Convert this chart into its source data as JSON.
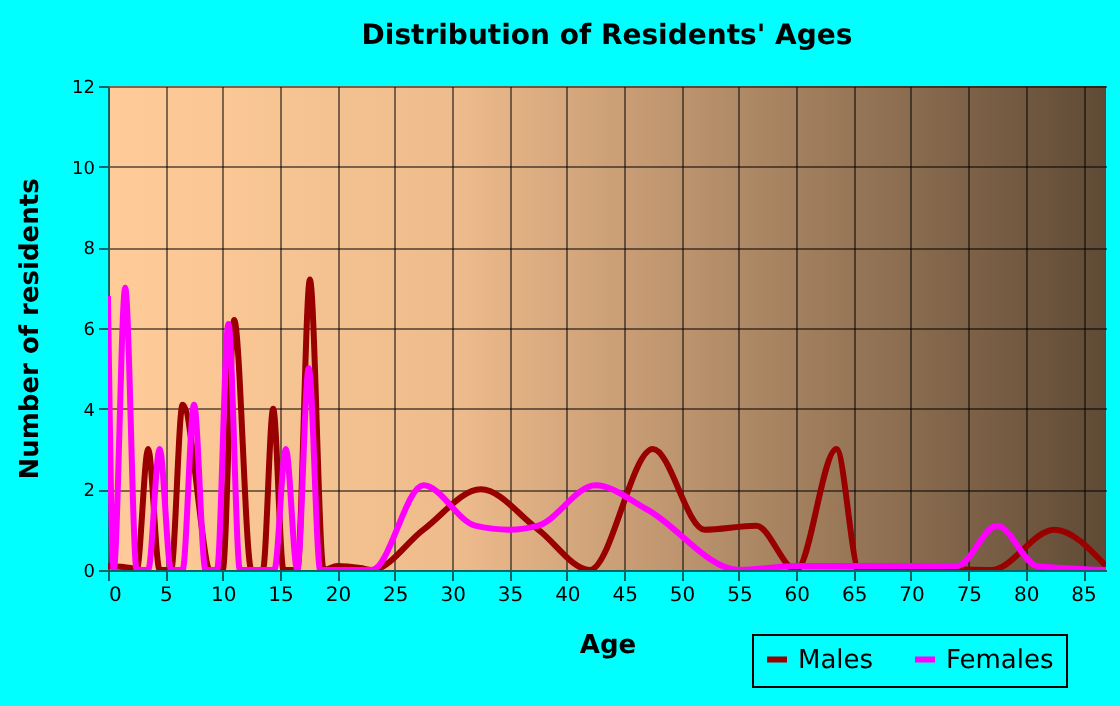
{
  "chart_data": {
    "type": "line",
    "title": "Distribution of Residents' Ages",
    "xlabel": "Age",
    "ylabel": "Number of residents",
    "xlim": [
      0,
      87
    ],
    "xticks": [
      0,
      5,
      10,
      15,
      20,
      25,
      30,
      35,
      40,
      45,
      50,
      55,
      60,
      65,
      70,
      75,
      80,
      85
    ],
    "ylim": [
      0,
      12
    ],
    "yticks": [
      0,
      2,
      4,
      6,
      8,
      10,
      12
    ],
    "grid": true,
    "legend": "bottom right",
    "series": [
      {
        "name": "Males",
        "color": "#990000",
        "x": [
          0,
          2,
          2.5,
          3.5,
          4.5,
          5.5,
          6.5,
          9,
          10,
          11,
          12.5,
          13.5,
          14.4,
          15.3,
          16.5,
          17.6,
          18.8,
          20,
          22,
          23,
          27.5,
          32.5,
          37.5,
          42,
          47.5,
          52,
          56.5,
          60,
          63.5,
          65.5,
          70,
          77,
          82.5,
          87
        ],
        "values": [
          0.1,
          0.05,
          0,
          3,
          0,
          0,
          4.1,
          0,
          0,
          6.2,
          0,
          0,
          4,
          0,
          0,
          7.2,
          0,
          0.1,
          0.05,
          0,
          1,
          2,
          1,
          0,
          3,
          1,
          1.1,
          0,
          3,
          0,
          0.05,
          0,
          1,
          0.1
        ]
      },
      {
        "name": "Females",
        "color": "#ff00ff",
        "x": [
          0,
          0.5,
          1.5,
          2.5,
          3.5,
          4.5,
          5.5,
          6.5,
          7.5,
          8.5,
          9.5,
          10.5,
          11.5,
          14.5,
          15.5,
          16.5,
          17.5,
          18.5,
          23,
          27.5,
          32,
          35,
          37.5,
          42.5,
          47,
          55,
          60,
          70,
          74,
          77.5,
          81,
          87
        ],
        "values": [
          6.8,
          0,
          7,
          0,
          0,
          3,
          0,
          0,
          4.1,
          0,
          0,
          6.1,
          0,
          0,
          3,
          0,
          5,
          0,
          0,
          2.1,
          1.1,
          1,
          1.1,
          2.1,
          1.5,
          0,
          0.1,
          0.1,
          0.1,
          1.1,
          0.1,
          0
        ]
      }
    ]
  }
}
